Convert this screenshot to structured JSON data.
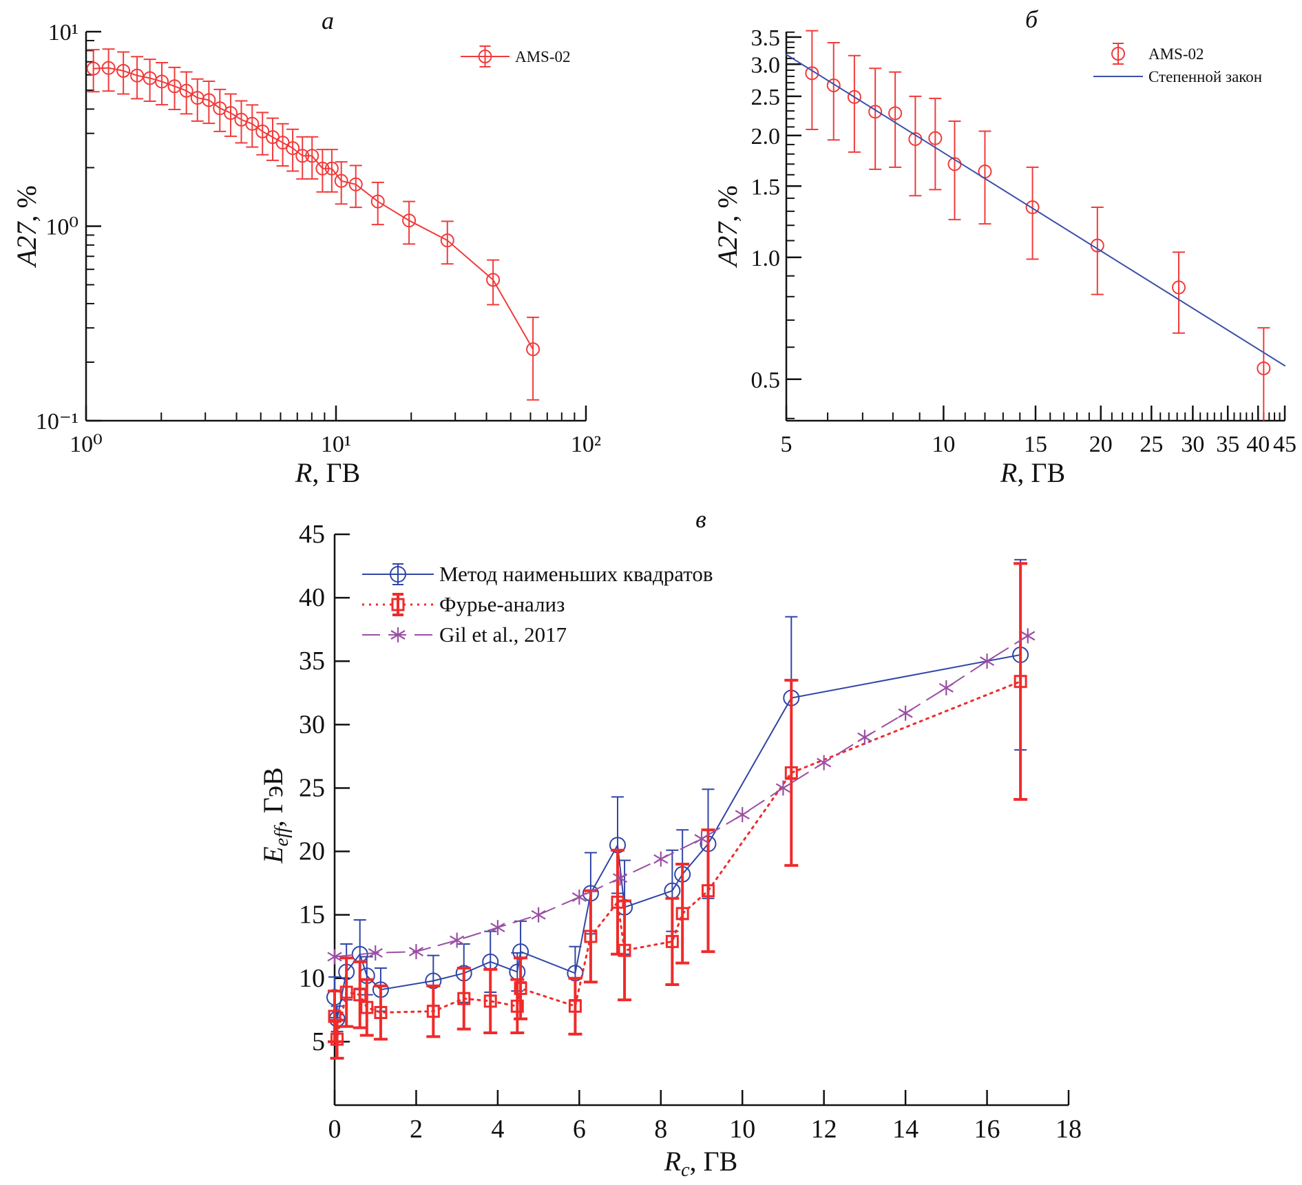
{
  "chart_data": [
    {
      "panel_label": "а",
      "type": "line",
      "xscale": "log",
      "yscale": "log",
      "xlim": [
        1,
        100
      ],
      "ylim": [
        0.1,
        10
      ],
      "grid": false,
      "xlabel": {
        "var": "R",
        "sub": "",
        "unit": ", ГВ"
      },
      "ylabel": {
        "var": "A27",
        "sub": "",
        "unit": ", %"
      },
      "x_ticks": {
        "values": [
          1,
          10,
          100
        ],
        "labels": [
          "10⁰",
          "10¹",
          "10²"
        ]
      },
      "y_ticks": {
        "values": [
          0.1,
          1,
          10
        ],
        "labels": [
          "10⁻¹",
          "10⁰",
          "10¹"
        ]
      },
      "legend_position": "top-right",
      "series": [
        {
          "name": "AMS-02",
          "color": "#f23a3a",
          "marker": "circle",
          "line": "solid",
          "x": [
            1.07,
            1.23,
            1.41,
            1.6,
            1.8,
            2.01,
            2.26,
            2.52,
            2.79,
            3.1,
            3.43,
            3.79,
            4.18,
            4.62,
            5.08,
            5.58,
            6.12,
            6.71,
            7.34,
            8.02,
            8.83,
            9.62,
            10.5,
            12.0,
            14.7,
            19.6,
            27.9,
            42.5,
            61.4
          ],
          "y": [
            6.46,
            6.51,
            6.29,
            5.95,
            5.77,
            5.54,
            5.24,
            4.97,
            4.57,
            4.45,
            4.04,
            3.82,
            3.53,
            3.36,
            3.07,
            2.87,
            2.69,
            2.52,
            2.3,
            2.3,
            1.98,
            1.98,
            1.71,
            1.64,
            1.34,
            1.07,
            0.845,
            0.53,
            0.233
          ],
          "y_low": [
            4.91,
            4.95,
            4.78,
            4.52,
            4.39,
            4.21,
            3.98,
            3.78,
            3.47,
            3.38,
            3.07,
            2.9,
            2.68,
            2.55,
            2.33,
            2.18,
            2.04,
            1.92,
            1.75,
            1.75,
            1.5,
            1.5,
            1.3,
            1.25,
            1.02,
            0.81,
            0.64,
            0.395,
            0.128
          ],
          "y_high": [
            8.08,
            8.14,
            7.86,
            7.44,
            7.21,
            6.93,
            6.55,
            6.21,
            5.71,
            5.56,
            5.05,
            4.78,
            4.41,
            4.2,
            3.84,
            3.59,
            3.36,
            3.15,
            2.88,
            2.88,
            2.48,
            2.48,
            2.14,
            2.05,
            1.68,
            1.34,
            1.06,
            0.67,
            0.34
          ]
        }
      ]
    },
    {
      "panel_label": "б",
      "type": "scatter",
      "xscale": "log",
      "yscale": "log",
      "xlim": [
        5,
        45
      ],
      "ylim": [
        0.395,
        3.61
      ],
      "grid": false,
      "xlabel": {
        "var": "R",
        "sub": "",
        "unit": ", ГВ"
      },
      "ylabel": {
        "var": "A27",
        "sub": "",
        "unit": ", %"
      },
      "x_ticks": {
        "values": [
          5,
          10,
          15,
          20,
          25,
          30,
          35,
          40,
          45
        ],
        "labels": [
          "5",
          "10",
          "15",
          "20",
          "25",
          "30",
          "35",
          "40",
          "45"
        ]
      },
      "y_ticks": {
        "values": [
          0.5,
          1.0,
          1.5,
          2.0,
          2.5,
          3.0,
          3.5
        ],
        "labels": [
          "0.5",
          "1.0",
          "1.5",
          "2.0",
          "2.5",
          "3.0",
          "3.5"
        ]
      },
      "legend_position": "top-right",
      "series": [
        {
          "name": "AMS-02",
          "color": "#f23a3a",
          "marker": "circle",
          "line": "none",
          "x": [
            5.6,
            6.16,
            6.75,
            7.4,
            8.08,
            8.83,
            9.64,
            10.5,
            12.0,
            14.8,
            19.7,
            28.2,
            41.0
          ],
          "y": [
            2.85,
            2.66,
            2.49,
            2.29,
            2.27,
            1.96,
            1.97,
            1.7,
            1.63,
            1.33,
            1.07,
            0.843,
            0.532
          ],
          "y_low": [
            2.07,
            1.95,
            1.82,
            1.65,
            1.67,
            1.42,
            1.47,
            1.24,
            1.21,
            0.99,
            0.81,
            0.65,
            0.38
          ],
          "y_high": [
            3.63,
            3.39,
            3.15,
            2.93,
            2.87,
            2.5,
            2.47,
            2.17,
            2.05,
            1.67,
            1.33,
            1.03,
            0.67
          ]
        },
        {
          "name": "Степенной закон",
          "color": "#3a4fa8",
          "marker": "none",
          "line": "solid",
          "x": [
            5,
            45
          ],
          "y": [
            3.17,
            0.54
          ]
        }
      ]
    },
    {
      "panel_label": "в",
      "type": "line",
      "xscale": "linear",
      "yscale": "linear",
      "xlim": [
        0,
        18
      ],
      "ylim": [
        0,
        45
      ],
      "grid": false,
      "xlabel": {
        "var": "R",
        "sub": "c",
        "unit": ", ГВ"
      },
      "ylabel": {
        "var": "E",
        "sub": "eff",
        "unit": ", ГэВ"
      },
      "x_ticks": {
        "values": [
          0,
          2,
          4,
          6,
          8,
          10,
          12,
          14,
          16,
          18
        ],
        "labels": [
          "0",
          "2",
          "4",
          "6",
          "8",
          "10",
          "12",
          "14",
          "16",
          "18"
        ]
      },
      "y_ticks": {
        "values": [
          5,
          10,
          15,
          20,
          25,
          30,
          35,
          40,
          45
        ],
        "labels": [
          "5",
          "10",
          "15",
          "20",
          "25",
          "30",
          "35",
          "40",
          "45"
        ]
      },
      "legend_position": "top-left",
      "series": [
        {
          "name": "Метод наименьших квадратов",
          "color": "#2f45a6",
          "marker": "circle",
          "line": "solid",
          "x": [
            0.0,
            0.06,
            0.29,
            0.62,
            0.79,
            1.13,
            2.42,
            3.17,
            3.82,
            4.48,
            4.56,
            5.9,
            6.28,
            6.94,
            7.11,
            8.28,
            8.53,
            9.16,
            11.2,
            16.82
          ],
          "y": [
            8.5,
            6.8,
            10.5,
            11.9,
            10.2,
            9.1,
            9.8,
            10.4,
            11.3,
            10.5,
            12.1,
            10.4,
            16.7,
            20.5,
            15.6,
            16.9,
            18.2,
            20.6,
            32.1,
            35.5
          ],
          "yerr": [
            1.6,
            1.0,
            2.2,
            2.7,
            1.5,
            1.7,
            2.0,
            2.3,
            2.4,
            1.5,
            2.4,
            2.1,
            3.2,
            3.8,
            3.7,
            3.2,
            3.5,
            4.3,
            6.4,
            7.5
          ]
        },
        {
          "name": "Фурье-анализ",
          "color": "#f02a2a",
          "marker": "square",
          "line": "dotted",
          "x": [
            0.0,
            0.06,
            0.29,
            0.62,
            0.79,
            1.13,
            2.42,
            3.17,
            3.82,
            4.48,
            4.56,
            5.9,
            6.28,
            6.94,
            7.11,
            8.28,
            8.53,
            9.16,
            11.2,
            16.82
          ],
          "y": [
            7.0,
            5.2,
            8.9,
            8.7,
            7.7,
            7.3,
            7.4,
            8.4,
            8.2,
            7.8,
            9.2,
            7.8,
            13.3,
            16.0,
            12.2,
            12.9,
            15.1,
            16.9,
            26.2,
            33.4
          ],
          "yerr": [
            2.0,
            1.5,
            2.7,
            2.6,
            2.2,
            2.1,
            2.0,
            2.4,
            2.5,
            2.1,
            2.4,
            2.2,
            3.6,
            4.1,
            3.9,
            3.4,
            3.9,
            4.8,
            7.3,
            9.3
          ]
        },
        {
          "name": "Gil et al., 2017",
          "color": "#9a4fa3",
          "marker": "star",
          "line": "dashed",
          "x": [
            0,
            1,
            2,
            3,
            4,
            5,
            6,
            7,
            8,
            9,
            10,
            11,
            12,
            13,
            14,
            15,
            16,
            17
          ],
          "y": [
            11.7,
            12.0,
            12.1,
            13.0,
            14.0,
            15.0,
            16.4,
            17.9,
            19.4,
            21.0,
            22.9,
            25.0,
            27.0,
            29.0,
            30.9,
            32.9,
            35.0,
            37.0
          ]
        }
      ]
    }
  ]
}
